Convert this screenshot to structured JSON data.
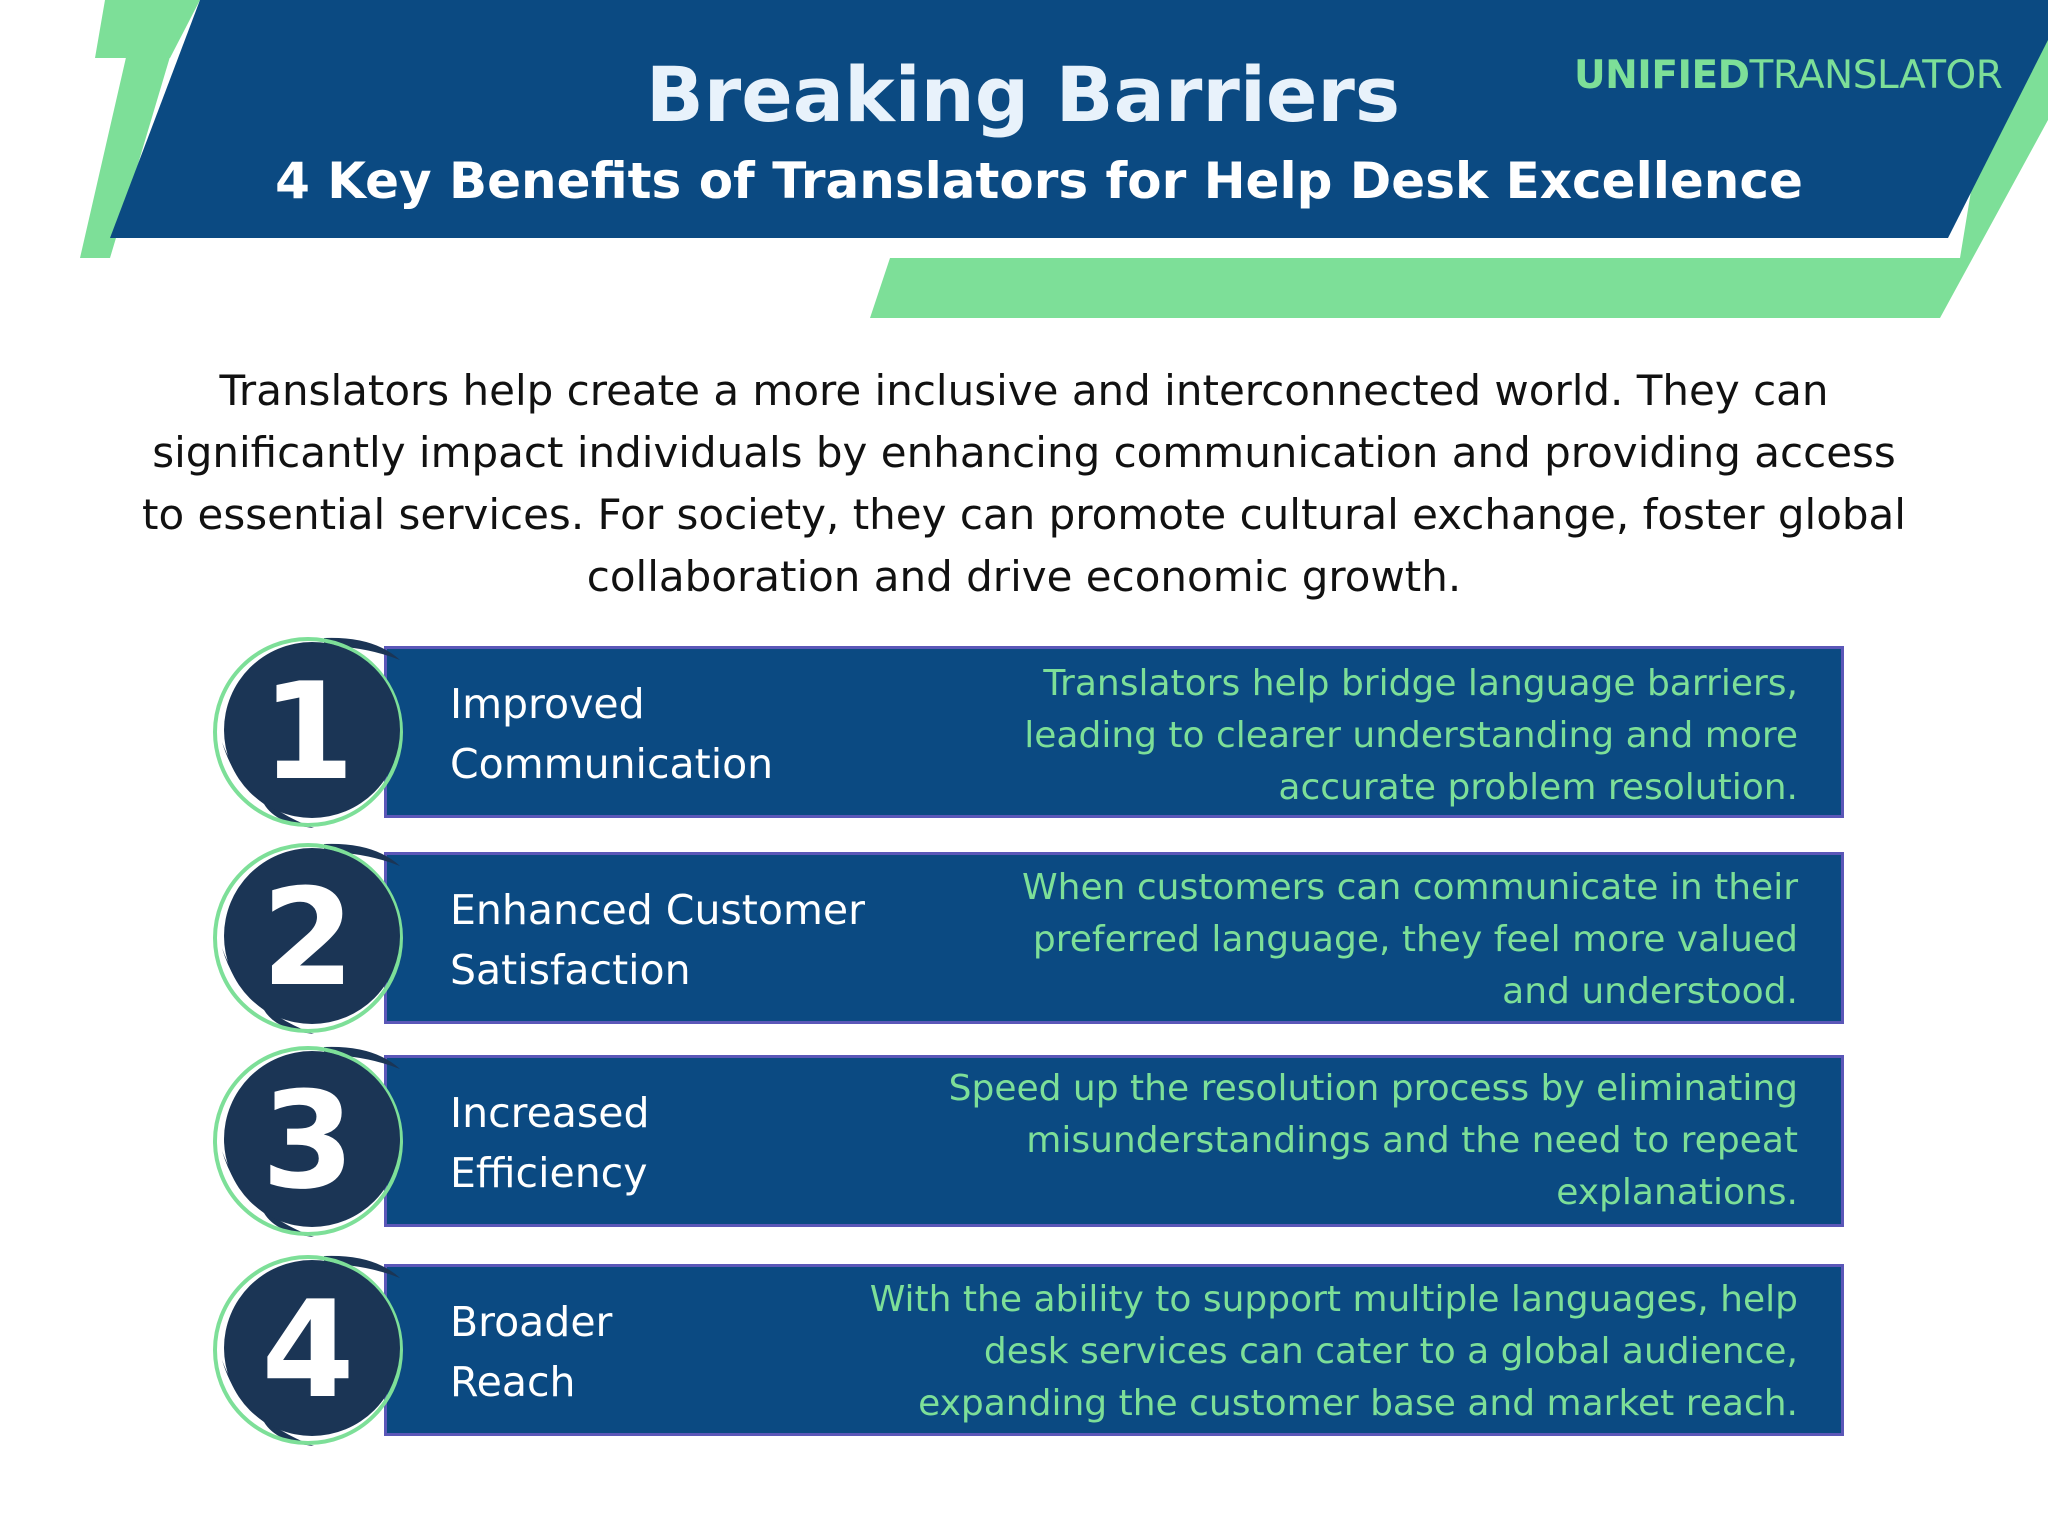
{
  "header": {
    "title": "Breaking Barriers",
    "subtitle": "4 Key Benefits of Translators for Help Desk Excellence",
    "brand_bold": "UNIFIED",
    "brand_light": "TRANSLATOR"
  },
  "intro": {
    "line1": "Translators help create a more inclusive and interconnected world. They can",
    "line2": "significantly impact individuals by enhancing communication and providing access",
    "line3": "to essential services. For society, they can promote cultural exchange, foster global",
    "line4": "collaboration and drive economic growth."
  },
  "benefits": [
    {
      "number": "1",
      "title_line1": "Improved",
      "title_line2": "Communication",
      "desc_line1": "Translators help bridge language barriers,",
      "desc_line2": "leading to clearer understanding and more",
      "desc_line3": "accurate problem resolution."
    },
    {
      "number": "2",
      "title_line1": "Enhanced Customer",
      "title_line2": "Satisfaction",
      "desc_line1": "When customers can communicate in their",
      "desc_line2": "preferred language, they feel more valued",
      "desc_line3": "and understood."
    },
    {
      "number": "3",
      "title_line1": "Increased",
      "title_line2": "Efficiency",
      "desc_line1": "Speed up the resolution process by eliminating",
      "desc_line2": "misunderstandings and the need to repeat",
      "desc_line3": "explanations."
    },
    {
      "number": "4",
      "title_line1": "Broader",
      "title_line2": "Reach",
      "desc_line1": "With the ability to support multiple languages, help",
      "desc_line2": "desk services can cater to a global audience,",
      "desc_line3": "expanding the customer base and market reach."
    }
  ],
  "colors": {
    "navy": "#0b4a82",
    "dark_navy": "#1b3555",
    "green": "#7ddf98",
    "bar_border": "#5b57b8"
  }
}
